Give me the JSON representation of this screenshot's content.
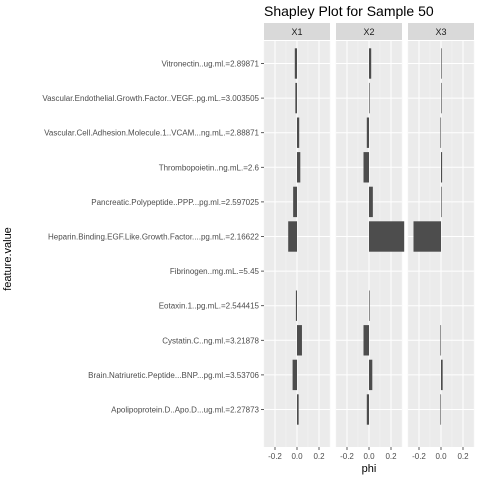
{
  "chart_data": {
    "type": "bar",
    "orientation": "horizontal",
    "title": "Shapley Plot for Sample 50",
    "xlabel": "phi",
    "ylabel": "feature.value",
    "xlim": [
      -0.3,
      0.3
    ],
    "xticks": [
      -0.2,
      0.0,
      0.2
    ],
    "xtick_labels": [
      "-0.2",
      "0.0",
      "0.2"
    ],
    "grid": true,
    "bar_color": "#4d4d4d",
    "panel_background": "#ebebeb",
    "strip_background": "#d9d9d9",
    "categories": [
      "Vitronectin..ug.ml.=2.89871",
      "Vascular.Endothelial.Growth.Factor..VEGF..pg.mL.=3.003505",
      "Vascular.Cell.Adhesion.Molecule.1..VCAM...ng.mL.=2.88871",
      "Thrombopoietin..ng.mL.=2.6",
      "Pancreatic.Polypeptide..PPP...pg.ml.=2.597025",
      "Heparin.Binding.EGF.Like.Growth.Factor....pg.mL.=2.16622",
      "Fibrinogen..mg.mL.=5.45",
      "Eotaxin.1..pg.mL.=2.544415",
      "Cystatin.C..ng.ml.=3.21878",
      "Brain.Natriuretic.Peptide...BNP...pg.ml.=3.53706",
      "Apolipoprotein.D..Apo.D...ug.ml.=2.27873"
    ],
    "facets": [
      {
        "name": "X1",
        "values": [
          -0.02,
          -0.015,
          0.02,
          0.03,
          -0.035,
          -0.08,
          0.0,
          -0.01,
          0.045,
          -0.04,
          0.015
        ]
      },
      {
        "name": "X2",
        "values": [
          0.02,
          0.005,
          -0.02,
          -0.05,
          0.035,
          0.32,
          0.0,
          0.005,
          -0.05,
          0.03,
          -0.02
        ]
      },
      {
        "name": "X3",
        "values": [
          0.005,
          0.005,
          -0.005,
          0.01,
          0.005,
          -0.25,
          0.0,
          0.0,
          -0.005,
          0.015,
          -0.005
        ]
      }
    ]
  }
}
